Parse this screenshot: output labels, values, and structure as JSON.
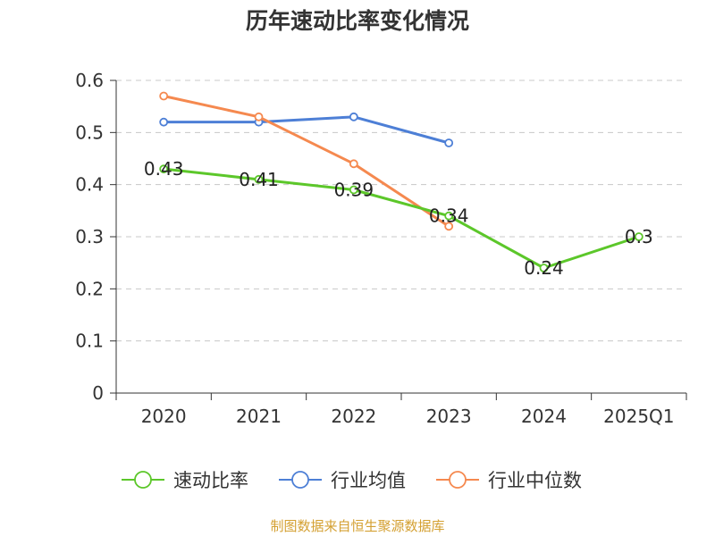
{
  "chart_data": {
    "type": "line",
    "title": "历年速动比率变化情况",
    "categories": [
      "2020",
      "2021",
      "2022",
      "2023",
      "2024",
      "2025Q1"
    ],
    "ylim": [
      0,
      0.6
    ],
    "yticks": [
      "0",
      "0.1",
      "0.2",
      "0.3",
      "0.4",
      "0.5",
      "0.6"
    ],
    "grid": true,
    "legend_position": "bottom",
    "series": [
      {
        "name": "速动比率",
        "color": "#5cc72a",
        "values": [
          0.43,
          0.41,
          0.39,
          0.34,
          0.24,
          0.3
        ],
        "labels": [
          "0.43",
          "0.41",
          "0.39",
          "0.34",
          "0.24",
          "0.3"
        ]
      },
      {
        "name": "行业均值",
        "color": "#4d7fd6",
        "values": [
          0.52,
          0.52,
          0.53,
          0.48,
          null,
          null
        ]
      },
      {
        "name": "行业中位数",
        "color": "#f5894f",
        "values": [
          0.57,
          0.53,
          0.44,
          0.32,
          null,
          null
        ]
      }
    ]
  },
  "source": "制图数据来自恒生聚源数据库"
}
